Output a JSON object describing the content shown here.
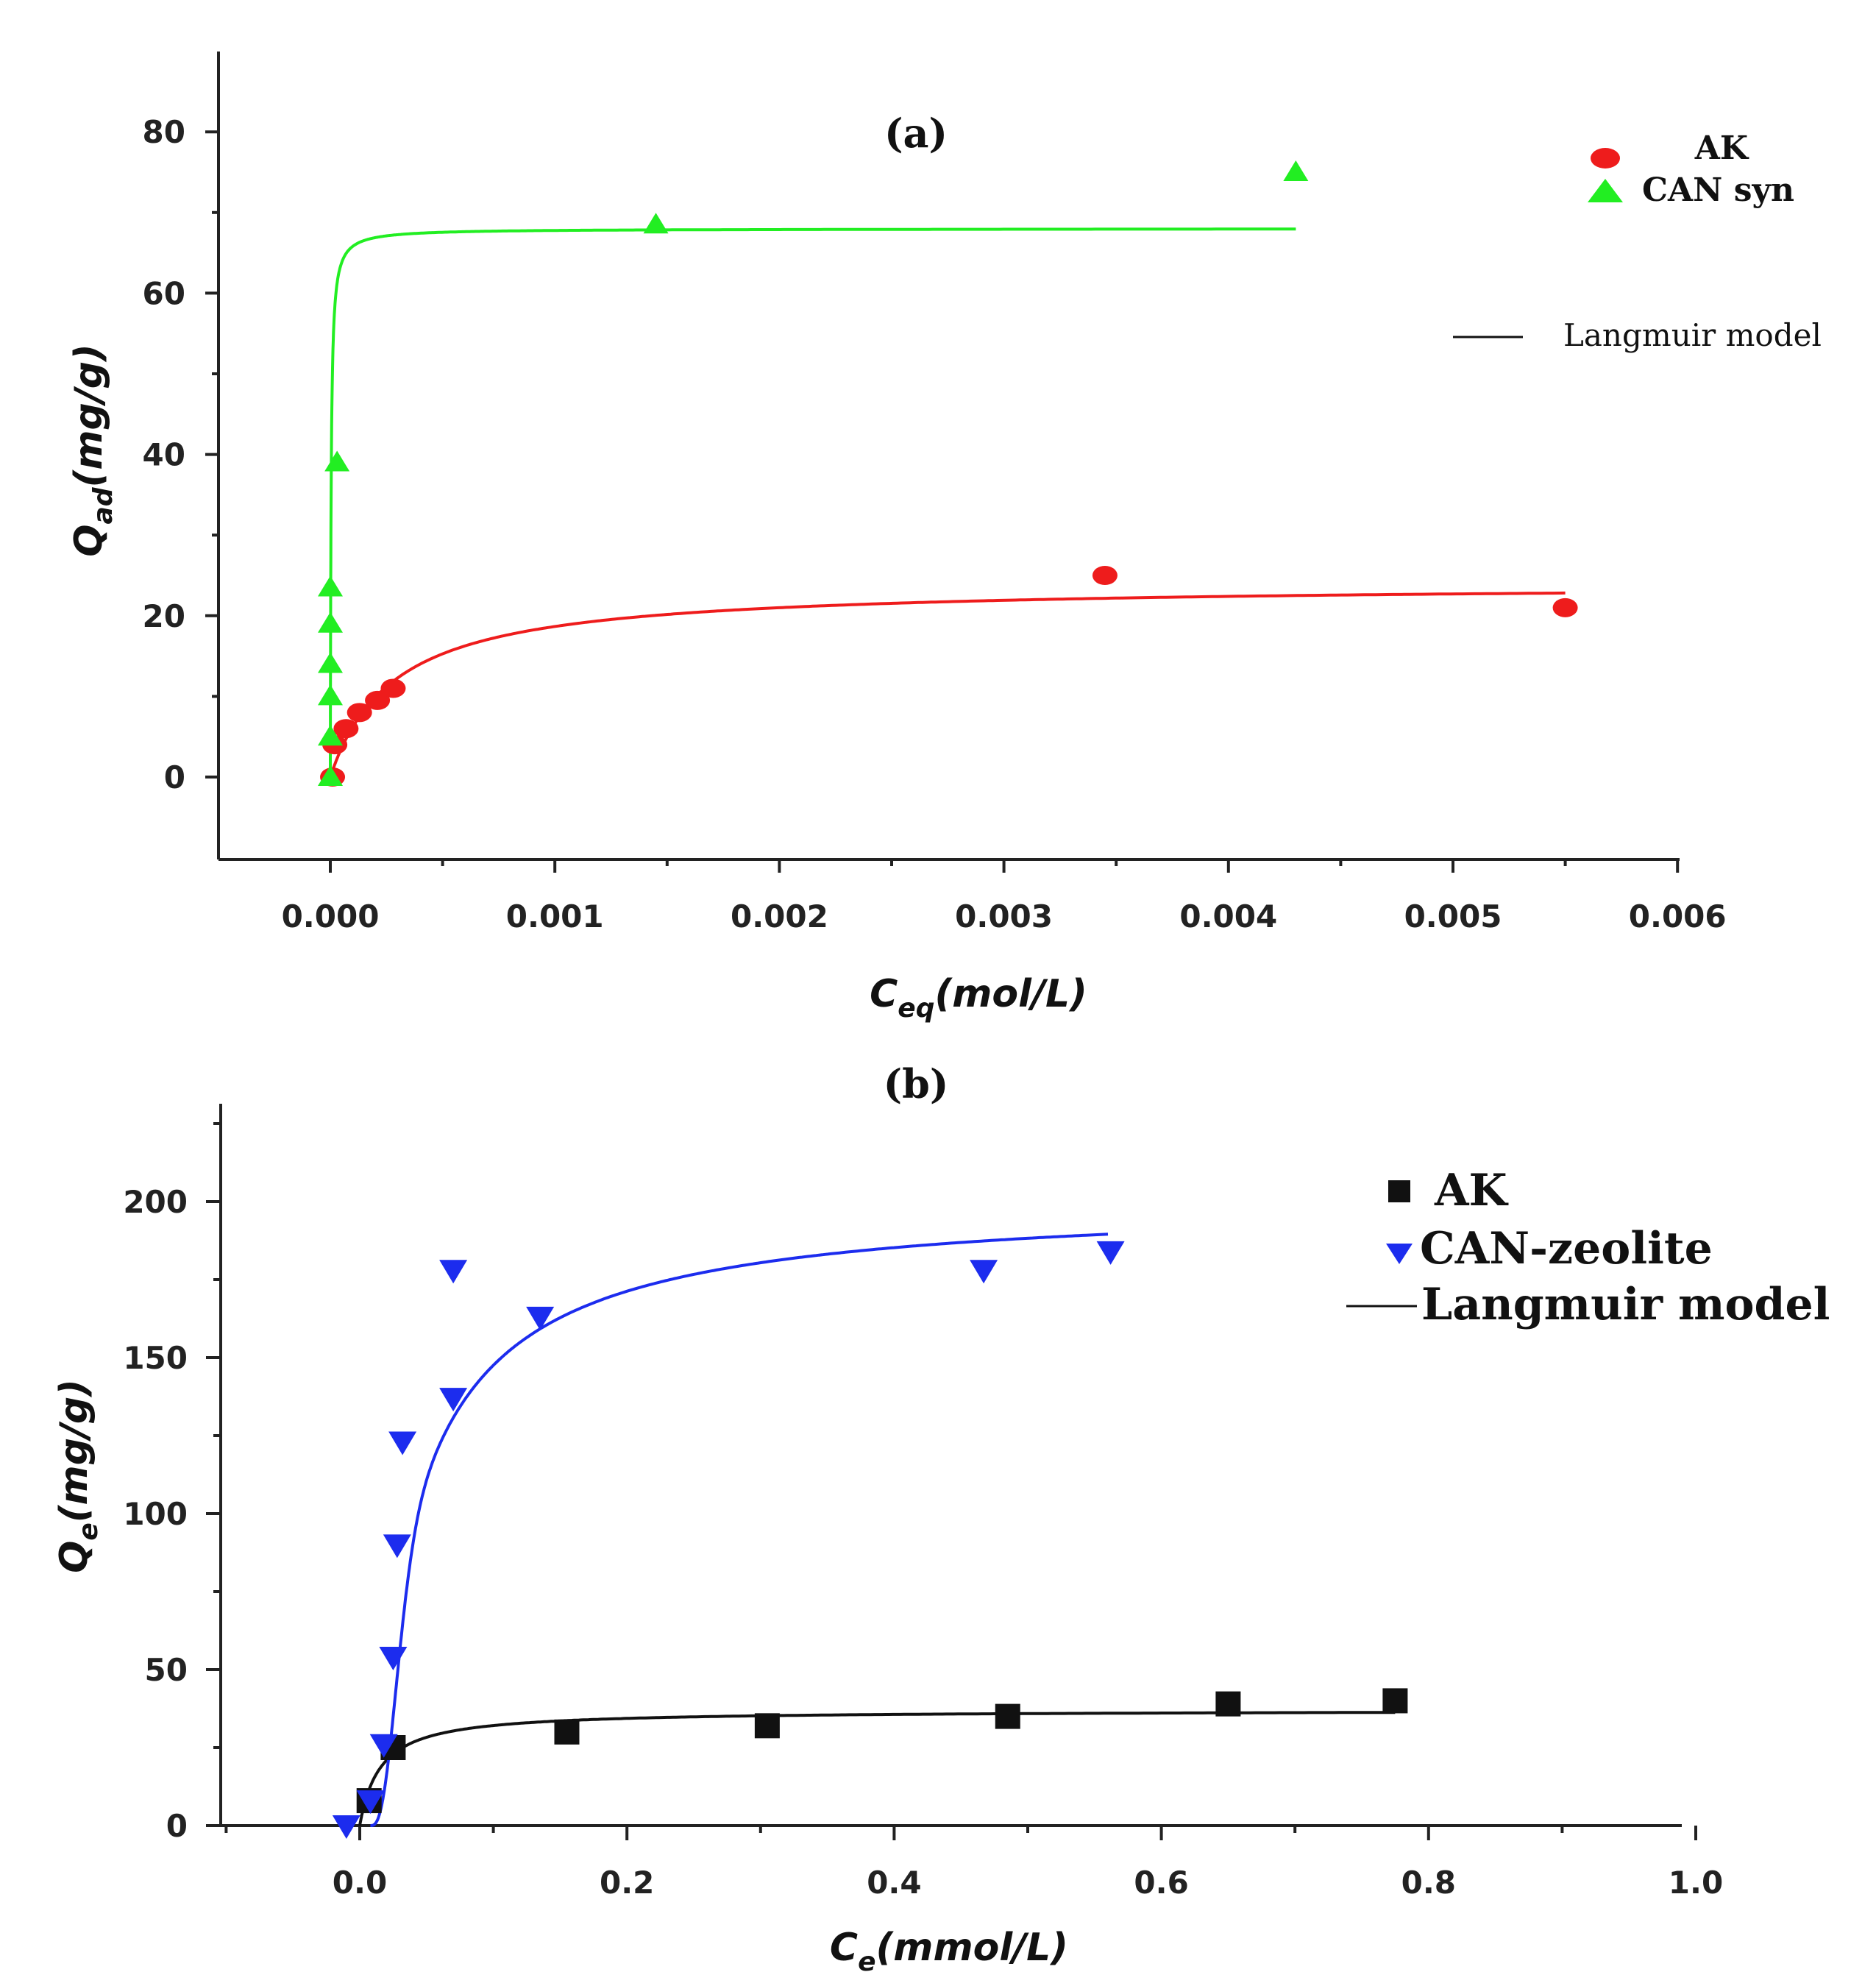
{
  "chart_data": [
    {
      "id": "a",
      "type": "scatter",
      "title": "(a)",
      "xlabel_main": "C",
      "xlabel_sub": "eq",
      "xlabel_unit": "(mol/L)",
      "ylabel_main": "Q",
      "ylabel_sub": "ad",
      "ylabel_unit": "(mg/g)",
      "xlim": [
        -0.0005,
        0.006
      ],
      "ylim": [
        -10,
        90
      ],
      "xticks": [
        0.0,
        0.001,
        0.002,
        0.003,
        0.004,
        0.005,
        0.006
      ],
      "xtick_labels": [
        "0.000",
        "0.001",
        "0.002",
        "0.003",
        "0.004",
        "0.005",
        "0.006"
      ],
      "yticks": [
        0,
        20,
        40,
        60,
        80
      ],
      "ytick_labels": [
        "0",
        "20",
        "40",
        "60",
        "80"
      ],
      "legend": {
        "placement": "top-right",
        "entries": [
          "AK",
          "CAN syn"
        ],
        "model_label": "Langmuir model"
      },
      "series": [
        {
          "name": "AK",
          "color": "#ee1c1c",
          "marker": "circle",
          "points": [
            [
              1e-05,
              0
            ],
            [
              2e-05,
              4
            ],
            [
              7e-05,
              6
            ],
            [
              0.00013,
              8
            ],
            [
              0.00021,
              9.5
            ],
            [
              0.00028,
              11
            ],
            [
              0.00345,
              25
            ],
            [
              0.0055,
              21
            ]
          ],
          "fit": {
            "model": "langmuir",
            "qmax": 24,
            "K": 3500,
            "x_end": 0.0055
          }
        },
        {
          "name": "CAN syn",
          "color": "#22ee22",
          "marker": "triangle-up",
          "points": [
            [
              0,
              0
            ],
            [
              0,
              5
            ],
            [
              0,
              10
            ],
            [
              0,
              14
            ],
            [
              0,
              19
            ],
            [
              0,
              23.5
            ],
            [
              3e-05,
              39
            ],
            [
              0.00145,
              68.5
            ],
            [
              0.0043,
              75
            ]
          ],
          "fit": {
            "model": "langmuir",
            "qmax": 68,
            "K": 300000,
            "x_end": 0.0043
          }
        }
      ]
    },
    {
      "id": "b",
      "type": "scatter",
      "title": "(b)",
      "xlabel_main": "C",
      "xlabel_sub": "e",
      "xlabel_unit": "(mmol/L)",
      "ylabel_main": "Q",
      "ylabel_sub": "e",
      "ylabel_unit": "(mg/g)",
      "xlim": [
        -0.1,
        1.0
      ],
      "ylim": [
        0,
        230
      ],
      "xticks": [
        0.0,
        0.2,
        0.4,
        0.6,
        0.8,
        1.0
      ],
      "xtick_labels": [
        "0.0",
        "0.2",
        "0.4",
        "0.6",
        "0.8",
        "1.0"
      ],
      "yticks": [
        0,
        50,
        100,
        150,
        200
      ],
      "ytick_labels": [
        "0",
        "50",
        "100",
        "150",
        "200"
      ],
      "legend": {
        "placement": "top-right",
        "entries": [
          "AK",
          "CAN-zeolite"
        ],
        "model_label": "Langmuir model"
      },
      "series": [
        {
          "name": "AK",
          "color": "#111111",
          "marker": "square",
          "points": [
            [
              0.007,
              8
            ],
            [
              0.025,
              25
            ],
            [
              0.155,
              30
            ],
            [
              0.305,
              32
            ],
            [
              0.485,
              35
            ],
            [
              0.65,
              39
            ],
            [
              0.775,
              40
            ]
          ],
          "fit": {
            "model": "langmuir",
            "qmax": 37,
            "K": 65,
            "x_end": 0.775
          }
        },
        {
          "name": "CAN-zeolite",
          "color": "#1c2cee",
          "marker": "triangle-down",
          "points": [
            [
              -0.01,
              0
            ],
            [
              0.008,
              8
            ],
            [
              0.018,
              26
            ],
            [
              0.025,
              54
            ],
            [
              0.028,
              90
            ],
            [
              0.032,
              123
            ],
            [
              0.07,
              137
            ],
            [
              0.07,
              178
            ],
            [
              0.135,
              163
            ],
            [
              0.467,
              178
            ],
            [
              0.562,
              184
            ]
          ],
          "fit": {
            "model": "sigmoid-langmuir",
            "qmax": 201,
            "K": 30,
            "x0": 0.008,
            "x_end": 0.56
          }
        }
      ]
    }
  ]
}
